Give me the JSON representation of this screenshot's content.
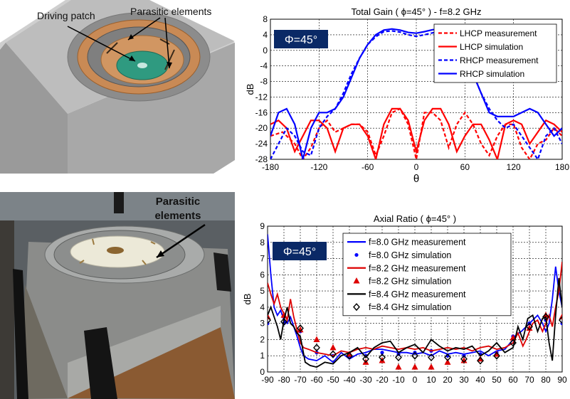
{
  "photos": {
    "cad_model": {
      "driving_patch_label": "Driving patch",
      "parasitic_label": "Parasitic elements"
    },
    "prototype": {
      "parasitic_label": "Parasitic\nelements"
    }
  },
  "chart_data": [
    {
      "type": "line",
      "title": "Total Gain ( ϕ=45° ) - f=8.2 GHz",
      "xlabel": "θ",
      "ylabel": "dB",
      "xlim": [
        -180,
        180
      ],
      "ylim": [
        -28,
        8
      ],
      "xticks": [
        "-180",
        "-120",
        "-60",
        "0",
        "60",
        "120",
        "180"
      ],
      "yticks": [
        "-28",
        "-24",
        "-20",
        "-16",
        "-12",
        "-8",
        "-4",
        "0",
        "4",
        "8"
      ],
      "grid": true,
      "legend_position": "top-right",
      "badge": "Φ=45°",
      "series": [
        {
          "name": "LHCP measurement",
          "color": "#ff0000",
          "dash": "dashed",
          "x": [
            -180,
            -165,
            -150,
            -140,
            -130,
            -120,
            -110,
            -100,
            -90,
            -80,
            -70,
            -60,
            -50,
            -40,
            -30,
            -20,
            -10,
            0,
            10,
            20,
            30,
            40,
            50,
            60,
            70,
            80,
            90,
            100,
            110,
            120,
            130,
            140,
            150,
            160,
            170,
            180
          ],
          "values": [
            -22,
            -21,
            -24,
            -28,
            -25,
            -20,
            -18,
            -21,
            -20,
            -19,
            -19,
            -21,
            -27,
            -22,
            -16,
            -15,
            -19,
            -28,
            -16,
            -16,
            -18,
            -25,
            -19,
            -16,
            -19,
            -24,
            -27,
            -22,
            -19,
            -19,
            -25,
            -28,
            -24,
            -23,
            -20,
            -22
          ]
        },
        {
          "name": "LHCP simulation",
          "color": "#ff0000",
          "dash": "solid",
          "x": [
            -180,
            -170,
            -160,
            -150,
            -140,
            -130,
            -120,
            -110,
            -100,
            -90,
            -80,
            -70,
            -60,
            -50,
            -40,
            -30,
            -20,
            -10,
            0,
            10,
            20,
            30,
            40,
            50,
            60,
            70,
            80,
            90,
            100,
            110,
            120,
            130,
            140,
            150,
            160,
            170,
            180
          ],
          "values": [
            -19,
            -18,
            -20,
            -26,
            -22,
            -18,
            -18,
            -20,
            -26,
            -20,
            -19,
            -19,
            -22,
            -28,
            -19,
            -15,
            -15,
            -18,
            -26,
            -18,
            -15,
            -15,
            -19,
            -26,
            -22,
            -19,
            -19,
            -23,
            -28,
            -19,
            -18,
            -19,
            -24,
            -21,
            -18,
            -19,
            -21
          ]
        },
        {
          "name": "RHCP measurement",
          "color": "#0000ff",
          "dash": "dashed",
          "x": [
            -180,
            -170,
            -160,
            -150,
            -140,
            -130,
            -120,
            -110,
            -100,
            -90,
            -80,
            -70,
            -60,
            -50,
            -40,
            -30,
            -20,
            -10,
            0,
            10,
            20,
            30,
            40,
            50,
            60,
            70,
            80,
            90,
            100,
            110,
            120,
            130,
            140,
            150,
            160,
            170,
            180
          ],
          "values": [
            -28,
            -24,
            -20,
            -22,
            -26,
            -27,
            -20,
            -17,
            -15,
            -11,
            -6,
            -2,
            1.5,
            3.5,
            4.8,
            5,
            4.7,
            4,
            3.6,
            4,
            4.5,
            4.8,
            4.2,
            2,
            -2,
            -6,
            -11,
            -15,
            -18,
            -20,
            -19,
            -22,
            -25,
            -28,
            -22,
            -20,
            -24
          ]
        },
        {
          "name": "RHCP simulation",
          "color": "#0000ff",
          "dash": "solid",
          "x": [
            -180,
            -170,
            -160,
            -150,
            -140,
            -130,
            -120,
            -110,
            -100,
            -90,
            -80,
            -70,
            -60,
            -50,
            -40,
            -30,
            -20,
            -10,
            0,
            10,
            20,
            30,
            40,
            50,
            60,
            70,
            80,
            90,
            100,
            110,
            120,
            130,
            140,
            150,
            160,
            170,
            180
          ],
          "values": [
            -22,
            -16,
            -15,
            -19,
            -28,
            -20,
            -16,
            -16,
            -15,
            -12,
            -7,
            -2,
            1.5,
            4,
            5.2,
            5.5,
            5.2,
            4.6,
            4.4,
            4.8,
            5.3,
            5.5,
            5,
            2.5,
            -1.5,
            -6,
            -11,
            -16,
            -17,
            -17,
            -17,
            -16,
            -15,
            -16,
            -19,
            -22,
            -20
          ]
        }
      ]
    },
    {
      "type": "line",
      "title": "Axial Ratio ( ϕ=45° )",
      "xlabel": "",
      "ylabel": "dB",
      "xlim": [
        -90,
        90
      ],
      "ylim": [
        0,
        9
      ],
      "xticks": [
        "-90",
        "-70",
        "-50",
        "-30",
        "-10",
        "10",
        "30",
        "50",
        "70",
        "90"
      ],
      "xticks_minor": [
        "-80",
        "-60",
        "-40",
        "-20",
        "0",
        "20",
        "40",
        "60",
        "80"
      ],
      "yticks": [
        "0",
        "1",
        "2",
        "3",
        "4",
        "5",
        "6",
        "7",
        "8",
        "9"
      ],
      "grid": true,
      "legend_position": "top-right",
      "badge": "Φ=45°",
      "series": [
        {
          "name": "f=8.0 GHz measurement",
          "color": "#0000ff",
          "marker": "line",
          "x": [
            -90,
            -88,
            -86,
            -84,
            -82,
            -80,
            -78,
            -76,
            -74,
            -72,
            -70,
            -68,
            -65,
            -60,
            -55,
            -50,
            -45,
            -40,
            -35,
            -30,
            -25,
            -20,
            -15,
            -10,
            -5,
            0,
            5,
            10,
            15,
            20,
            25,
            30,
            35,
            40,
            45,
            50,
            55,
            60,
            62,
            65,
            68,
            70,
            72,
            75,
            78,
            80,
            82,
            84,
            86,
            88,
            90
          ],
          "values": [
            8.5,
            6,
            4,
            3.5,
            3.8,
            3.2,
            3,
            3.4,
            2.8,
            2.2,
            1.5,
            1,
            0.8,
            0.7,
            1,
            0.6,
            1.2,
            0.8,
            1.1,
            1.2,
            1.4,
            1.4,
            1.3,
            1.2,
            1.2,
            1.1,
            1.2,
            1,
            1.3,
            1.1,
            1.2,
            1.1,
            1.2,
            1.3,
            1,
            1.3,
            1.4,
            2,
            2.3,
            2.5,
            2.8,
            3,
            3.2,
            3.5,
            3,
            2.5,
            3,
            4.5,
            6.5,
            5,
            4
          ]
        },
        {
          "name": "f=8.0 GHz simulation",
          "color": "#0000ff",
          "marker": "dot",
          "x": [
            -90,
            -80,
            -70,
            -60,
            -50,
            -40,
            -30,
            -20,
            -10,
            0,
            10,
            20,
            30,
            40,
            50,
            60,
            70,
            80,
            90
          ],
          "values": [
            3,
            3,
            2.5,
            1.2,
            1,
            1,
            1,
            1.2,
            1.1,
            1.2,
            1.3,
            1,
            1,
            1.1,
            1.2,
            2.2,
            3,
            3.2,
            3
          ]
        },
        {
          "name": "f=8.2 GHz measurement",
          "color": "#dd0000",
          "marker": "line",
          "x": [
            -90,
            -88,
            -86,
            -84,
            -82,
            -80,
            -78,
            -76,
            -74,
            -72,
            -70,
            -68,
            -65,
            -60,
            -55,
            -50,
            -45,
            -40,
            -35,
            -30,
            -25,
            -20,
            -15,
            -10,
            -5,
            0,
            5,
            10,
            15,
            20,
            25,
            30,
            35,
            40,
            45,
            50,
            55,
            60,
            63,
            66,
            68,
            70,
            72,
            75,
            78,
            80,
            82,
            84,
            86,
            88,
            90
          ],
          "values": [
            5.5,
            4.8,
            4.2,
            4.8,
            4,
            3.6,
            3.2,
            4.5,
            3.4,
            2.6,
            1.8,
            1.5,
            1.4,
            1.2,
            1.1,
            1,
            1.3,
            1.2,
            1.4,
            1.5,
            1.4,
            1.6,
            1.5,
            1.4,
            1.5,
            1.4,
            1.5,
            1.3,
            1.4,
            1.5,
            1.4,
            1.5,
            1.3,
            1.5,
            1.6,
            1.4,
            1.5,
            1.8,
            2.4,
            1.6,
            2,
            2.5,
            3,
            3.2,
            2.5,
            3,
            3.5,
            2.8,
            4,
            5,
            6.8
          ]
        },
        {
          "name": "f=8.2 GHz simulation",
          "color": "#dd0000",
          "marker": "triangle",
          "x": [
            -90,
            -80,
            -70,
            -60,
            -50,
            -40,
            -30,
            -20,
            -10,
            0,
            10,
            20,
            30,
            40,
            50,
            60,
            70,
            80,
            90
          ],
          "values": [
            3.4,
            3.5,
            2.6,
            2,
            1.5,
            1.1,
            0.6,
            0.7,
            0.3,
            0.3,
            0.3,
            0.6,
            0.7,
            0.8,
            1.1,
            2.1,
            2.7,
            3.5,
            3.4
          ]
        },
        {
          "name": "f=8.4 GHz measurement",
          "color": "#000000",
          "marker": "line",
          "x": [
            -90,
            -88,
            -86,
            -84,
            -82,
            -80,
            -78,
            -76,
            -74,
            -72,
            -70,
            -67,
            -64,
            -60,
            -55,
            -50,
            -45,
            -40,
            -35,
            -30,
            -25,
            -20,
            -15,
            -10,
            -5,
            0,
            5,
            10,
            15,
            20,
            25,
            30,
            35,
            40,
            45,
            50,
            55,
            60,
            63,
            66,
            69,
            72,
            75,
            78,
            80,
            82,
            84,
            86,
            88,
            90
          ],
          "values": [
            3.5,
            4,
            3.4,
            2.8,
            2,
            3.2,
            4,
            3,
            2.8,
            2.4,
            2.2,
            0.6,
            0.4,
            0.3,
            0.6,
            0.5,
            1,
            1.2,
            1.5,
            0.9,
            1.5,
            1.8,
            1.9,
            1.2,
            1.5,
            1.7,
            1.2,
            2,
            1.6,
            1.3,
            1.5,
            1.4,
            1.6,
            1,
            1.3,
            1.8,
            1.2,
            1.5,
            2.8,
            2,
            3.3,
            3.5,
            2.5,
            3.3,
            3.4,
            1.8,
            0.7,
            3.5,
            5.8,
            4
          ]
        },
        {
          "name": "f=8.4 GHz simulation",
          "color": "#000000",
          "marker": "diamond",
          "x": [
            -90,
            -80,
            -70,
            -60,
            -50,
            -40,
            -30,
            -20,
            -10,
            0,
            10,
            20,
            30,
            40,
            50,
            60,
            70,
            80,
            90
          ],
          "values": [
            3.2,
            3.1,
            2.7,
            1.5,
            1.1,
            1,
            0.8,
            0.9,
            0.9,
            1,
            0.9,
            0.9,
            0.8,
            0.7,
            1,
            1.8,
            2.8,
            3.4,
            3.2
          ]
        }
      ]
    }
  ],
  "colors": {
    "badge_bg": "#0a2966",
    "badge_text": "#ffffff",
    "copper": "#c8864a",
    "patch_green": "#2f9a80"
  }
}
